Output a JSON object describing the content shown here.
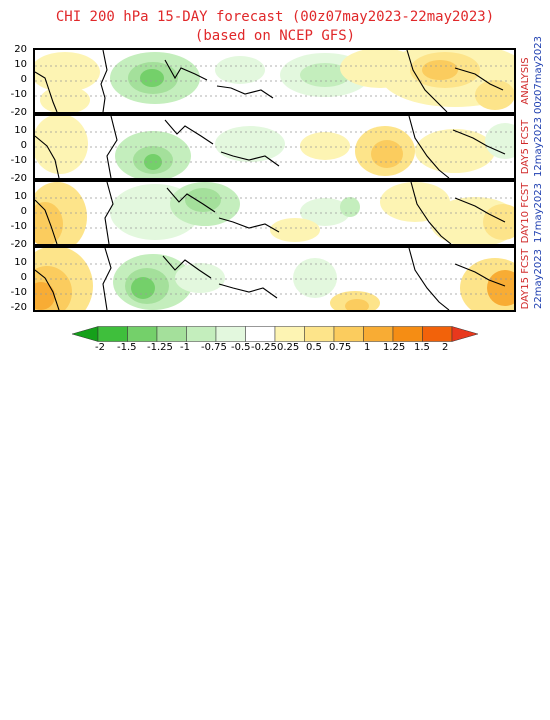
{
  "title": {
    "line1": "CHI 200 hPa 15-DAY forecast (00z07may2023-22may2023)",
    "line2": "(based on NCEP GFS)"
  },
  "y_ticks": [
    "20",
    "10",
    "0",
    "-10",
    "-20"
  ],
  "panels": [
    {
      "label": "ANALYSIS",
      "date": "00z07may2023"
    },
    {
      "label": "DAY5 FCST",
      "date": "12may2023"
    },
    {
      "label": "DAY10 FCST",
      "date": "17may2023"
    },
    {
      "label": "DAY15 FCST",
      "date": "22may2023"
    }
  ],
  "colorbar": {
    "labels": [
      "-2",
      "-1.5",
      "-1.25",
      "-1",
      "-0.75",
      "-0.5",
      "-0.25",
      "0.25",
      "0.5",
      "0.75",
      "1",
      "1.25",
      "1.5",
      "2"
    ],
    "colors": [
      "#15a01a",
      "#3fbf3c",
      "#74d06a",
      "#a4e09b",
      "#c4eebd",
      "#e3f8de",
      "#ffffff",
      "#fdf4b3",
      "#fde48a",
      "#fbcc5e",
      "#f8ac34",
      "#f58d14",
      "#f2620a",
      "#e8381d"
    ]
  }
}
